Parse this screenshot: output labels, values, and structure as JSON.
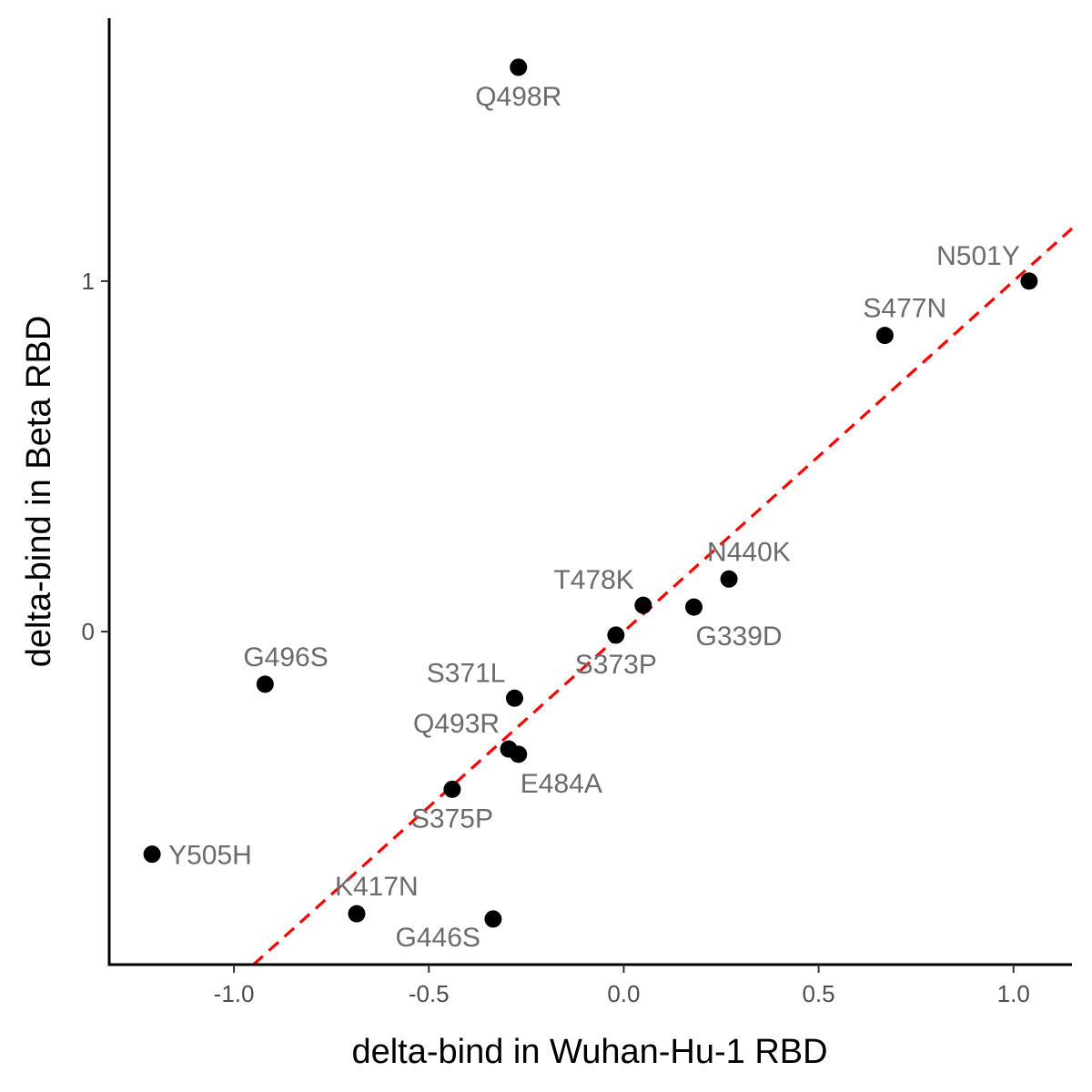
{
  "chart_data": {
    "type": "scatter",
    "title": "",
    "xlabel": "delta-bind in Wuhan-Hu-1 RBD",
    "ylabel": "delta-bind in Beta RBD",
    "xlim": [
      -1.32,
      1.15
    ],
    "ylim": [
      -0.95,
      1.75
    ],
    "xticks": [
      -1.0,
      -0.5,
      0.0,
      0.5,
      1.0
    ],
    "xtick_labels": [
      "-1.0",
      "-0.5",
      "0.0",
      "0.5",
      "1.0"
    ],
    "yticks": [
      0,
      1
    ],
    "ytick_labels": [
      "0",
      "1"
    ],
    "grid": false,
    "reference_line": {
      "style": "dashed",
      "color": "#ff0000",
      "slope": 1.0,
      "intercept": 0.0
    },
    "colors": {
      "points": "#000000",
      "labels": "#6b6b6b",
      "axes": "#000000",
      "ticks_text": "#4d4d4d"
    },
    "points": [
      {
        "label": "Q498R",
        "x": -0.27,
        "y": 1.61,
        "label_pos": "below"
      },
      {
        "label": "N501Y",
        "x": 1.04,
        "y": 1.0,
        "label_pos": "above-left"
      },
      {
        "label": "S477N",
        "x": 0.67,
        "y": 0.845,
        "label_pos": "above-right"
      },
      {
        "label": "N440K",
        "x": 0.27,
        "y": 0.15,
        "label_pos": "above-right"
      },
      {
        "label": "T478K",
        "x": 0.05,
        "y": 0.075,
        "label_pos": "above-left"
      },
      {
        "label": "G339D",
        "x": 0.18,
        "y": 0.07,
        "label_pos": "below-right"
      },
      {
        "label": "S373P",
        "x": -0.02,
        "y": -0.01,
        "label_pos": "below"
      },
      {
        "label": "G496S",
        "x": -0.92,
        "y": -0.15,
        "label_pos": "above-right"
      },
      {
        "label": "S371L",
        "x": -0.28,
        "y": -0.19,
        "label_pos": "above-left"
      },
      {
        "label": "Q493R",
        "x": -0.295,
        "y": -0.335,
        "label_pos": "above-left"
      },
      {
        "label": "E484A",
        "x": -0.27,
        "y": -0.35,
        "label_pos": "below-right"
      },
      {
        "label": "S375P",
        "x": -0.44,
        "y": -0.45,
        "label_pos": "below"
      },
      {
        "label": "Y505H",
        "x": -1.21,
        "y": -0.635,
        "label_pos": "right"
      },
      {
        "label": "K417N",
        "x": -0.685,
        "y": -0.805,
        "label_pos": "above-right"
      },
      {
        "label": "G446S",
        "x": -0.335,
        "y": -0.82,
        "label_pos": "below-left"
      }
    ]
  }
}
